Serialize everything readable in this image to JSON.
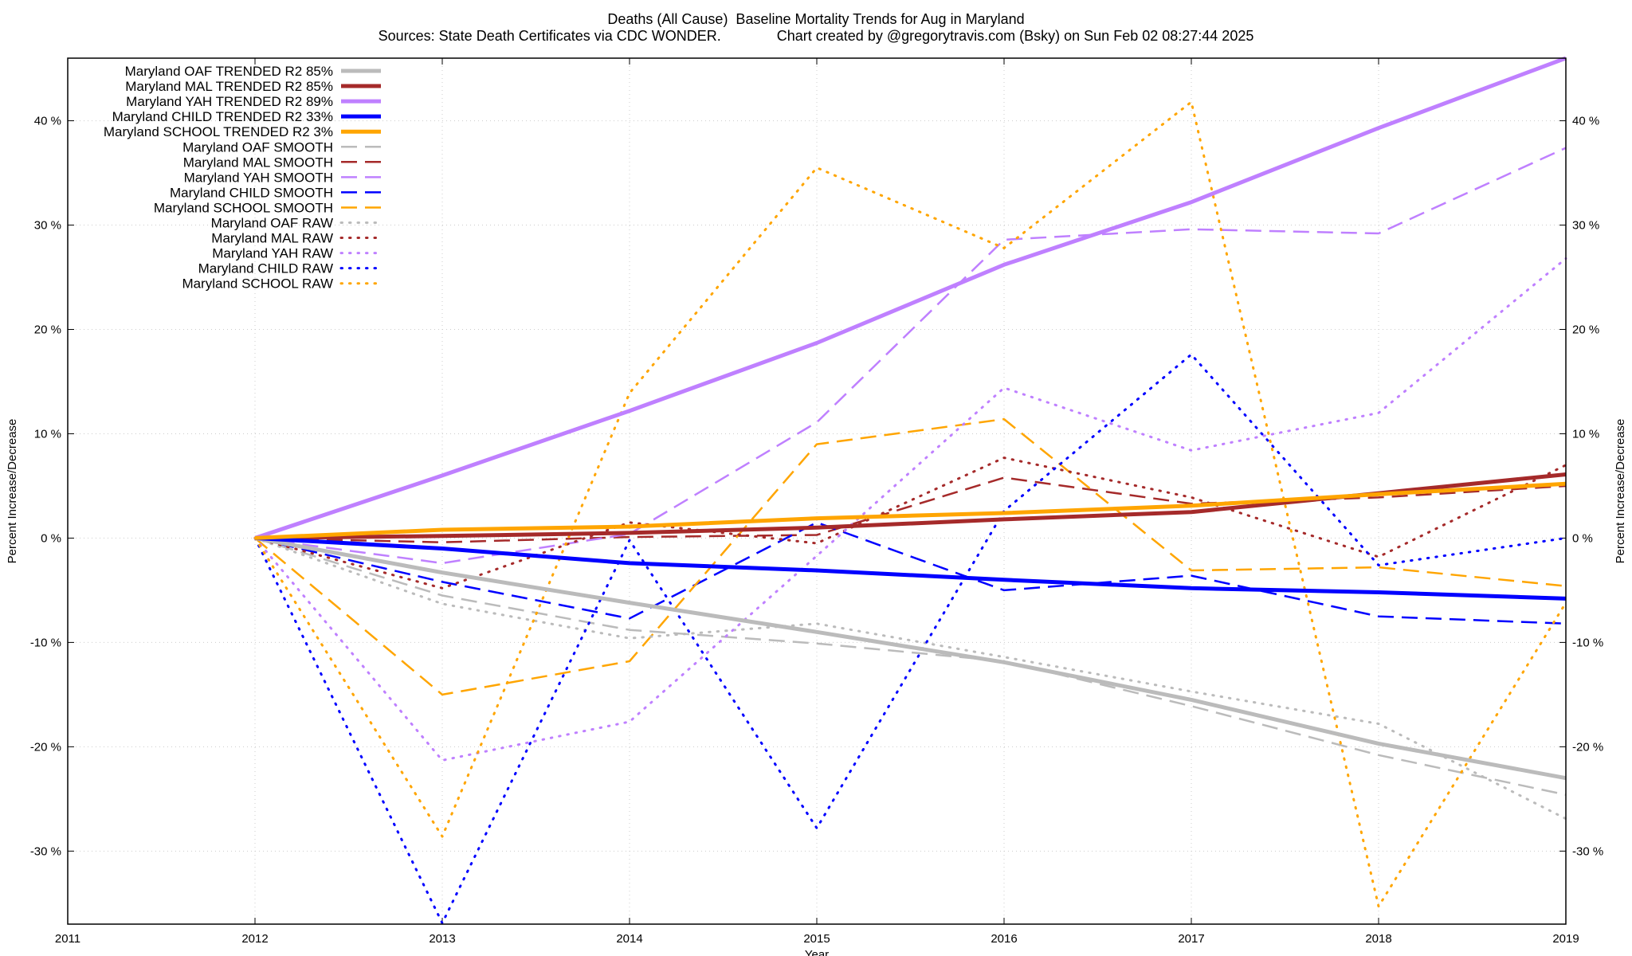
{
  "chart_data": {
    "type": "line",
    "title": "Deaths (All Cause)  Baseline Mortality Trends for Aug in Maryland",
    "subtitle": "Sources: State Death Certificates via CDC WONDER.              Chart created by @gregorytravis.com (Bsky) on Sun Feb 02 08:27:44 2025",
    "xlabel": "Year",
    "ylabel": "Percent Increase/Decrease",
    "y2label": "Percent Increase/Decrease",
    "xlim": [
      2011,
      2019
    ],
    "ylim": [
      -37,
      46
    ],
    "x_ticks": [
      2011,
      2012,
      2013,
      2014,
      2015,
      2016,
      2017,
      2018,
      2019
    ],
    "x_tick_labels": [
      "2011",
      "2012",
      "2013",
      "2014",
      "2015",
      "2016",
      "2017",
      "2018",
      "2019"
    ],
    "y_ticks": [
      -30,
      -20,
      -10,
      0,
      10,
      20,
      30,
      40
    ],
    "y_tick_labels": [
      "-30 %",
      "-20 %",
      "-10 %",
      "0 %",
      "10 %",
      "20 %",
      "30 %",
      "40 %"
    ],
    "grid": true,
    "legend_position": "top-left",
    "x": [
      2012,
      2013,
      2014,
      2015,
      2016,
      2017,
      2018,
      2019
    ],
    "series": [
      {
        "name": "Maryland OAF TRENDED R2  85%",
        "color": "#bbbbbb",
        "style": "solid",
        "width": 5,
        "values": [
          0,
          -3.3,
          -6.2,
          -9.0,
          -11.9,
          -15.5,
          -19.7,
          -23.0
        ]
      },
      {
        "name": "Maryland MAL TRENDED R2  85%",
        "color": "#a52a2a",
        "style": "solid",
        "width": 5,
        "values": [
          0,
          0.2,
          0.5,
          1.0,
          1.8,
          2.5,
          4.3,
          6.1
        ]
      },
      {
        "name": "Maryland YAH TRENDED R2  89%",
        "color": "#bf80ff",
        "style": "solid",
        "width": 5,
        "values": [
          0,
          6.0,
          12.2,
          18.7,
          26.2,
          32.2,
          39.3,
          46.0
        ]
      },
      {
        "name": "Maryland CHILD TRENDED R2  33%",
        "color": "#0000ff",
        "style": "solid",
        "width": 5,
        "values": [
          0,
          -1.0,
          -2.4,
          -3.1,
          -4.0,
          -4.8,
          -5.2,
          -5.8
        ]
      },
      {
        "name": "Maryland SCHOOL TRENDED R2   3%",
        "color": "#ffa500",
        "style": "solid",
        "width": 5,
        "values": [
          0,
          0.8,
          1.1,
          1.9,
          2.4,
          3.1,
          4.2,
          5.2
        ]
      },
      {
        "name": "Maryland OAF SMOOTH",
        "color": "#bbbbbb",
        "style": "dashed",
        "width": 2.5,
        "values": [
          0,
          -5.5,
          -8.8,
          -10.1,
          -11.8,
          -16.1,
          -20.8,
          -24.6
        ]
      },
      {
        "name": "Maryland MAL SMOOTH",
        "color": "#a52a2a",
        "style": "dashed",
        "width": 2.5,
        "values": [
          0,
          -0.4,
          0.1,
          0.3,
          5.8,
          3.3,
          3.9,
          5.0
        ]
      },
      {
        "name": "Maryland YAH SMOOTH",
        "color": "#bf80ff",
        "style": "dashed",
        "width": 2.5,
        "values": [
          0,
          -2.4,
          0.4,
          11.1,
          28.6,
          29.6,
          29.2,
          37.4
        ]
      },
      {
        "name": "Maryland CHILD SMOOTH",
        "color": "#0000ff",
        "style": "dashed",
        "width": 2.5,
        "values": [
          0,
          -4.2,
          -7.7,
          1.5,
          -5.0,
          -3.6,
          -7.5,
          -8.2
        ]
      },
      {
        "name": "Maryland SCHOOL SMOOTH",
        "color": "#ffa500",
        "style": "dashed",
        "width": 2.5,
        "values": [
          0,
          -15.0,
          -11.8,
          9.0,
          11.4,
          -3.1,
          -2.8,
          -4.6
        ]
      },
      {
        "name": "Maryland OAF RAW",
        "color": "#bbbbbb",
        "style": "dotted",
        "width": 3,
        "values": [
          0,
          -6.3,
          -9.6,
          -8.2,
          -11.4,
          -14.7,
          -17.8,
          -26.9
        ]
      },
      {
        "name": "Maryland MAL RAW",
        "color": "#a52a2a",
        "style": "dotted",
        "width": 3,
        "values": [
          0,
          -4.8,
          1.5,
          -0.5,
          7.7,
          3.9,
          -1.8,
          7.0
        ]
      },
      {
        "name": "Maryland YAH RAW",
        "color": "#bf80ff",
        "style": "dotted",
        "width": 3,
        "values": [
          0,
          -21.3,
          -17.6,
          -1.7,
          14.4,
          8.4,
          12.0,
          26.8
        ]
      },
      {
        "name": "Maryland CHILD RAW",
        "color": "#0000ff",
        "style": "dotted",
        "width": 3,
        "values": [
          0,
          -36.9,
          -0.2,
          -27.8,
          2.6,
          17.6,
          -2.6,
          0.0
        ]
      },
      {
        "name": "Maryland SCHOOL RAW",
        "color": "#ffa500",
        "style": "dotted",
        "width": 3,
        "values": [
          0,
          -28.6,
          13.9,
          35.5,
          27.8,
          41.8,
          -35.3,
          -6.2
        ]
      }
    ]
  }
}
